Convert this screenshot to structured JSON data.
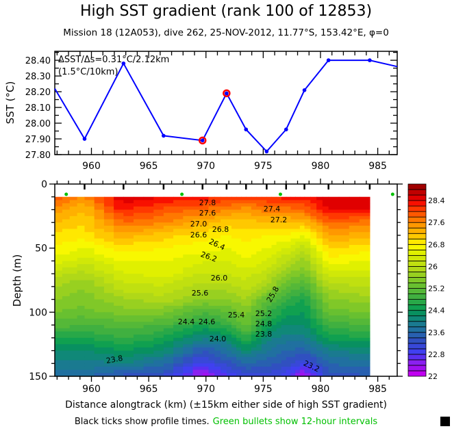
{
  "title": "High SST gradient (rank 100 of 12853)",
  "subtitle": "Mission 18 (12A053),  dive 262,  25-NOV-2012,  11.77°S, 153.42°E,  φ=0",
  "footnote": {
    "black_part": "Black ticks show profile times.",
    "green_part": "Green bullets show 12-hour intervals",
    "green_color": "#00c000"
  },
  "chart_data": [
    {
      "type": "line",
      "ylabel": "SST (°C)",
      "annotation_line1": "ΔSST/Δs=0.31°C/2.12km",
      "annotation_line2": "(1.5°C/10km)",
      "xlim": [
        956.8,
        986.7
      ],
      "ylim": [
        27.8,
        28.457
      ],
      "x_ticks": [
        960,
        965,
        970,
        975,
        980,
        985
      ],
      "y_ticks": [
        "27.80",
        "27.90",
        "28.00",
        "28.10",
        "28.20",
        "28.30",
        "28.40"
      ],
      "line_color": "#0000ff",
      "highlight_color": "#ff0000",
      "x": [
        956.8,
        959.4,
        962.8,
        966.3,
        969.7,
        971.8,
        973.5,
        975.3,
        977.0,
        978.6,
        980.7,
        984.3,
        986.7
      ],
      "y": [
        28.22,
        27.9,
        28.38,
        27.92,
        27.89,
        28.19,
        27.96,
        27.82,
        27.96,
        28.21,
        28.4,
        28.4,
        28.36
      ],
      "highlighted_x": [
        969.7,
        971.8
      ]
    },
    {
      "type": "heatmap",
      "ylabel": "Depth (m)",
      "xlabel": "Distance alongtrack (km) (±15km either side of high SST gradient)",
      "xlim": [
        956.8,
        986.7
      ],
      "ylim": [
        150,
        0
      ],
      "x_ticks": [
        960,
        965,
        970,
        975,
        980,
        985
      ],
      "y_ticks": [
        0,
        50,
        100,
        150
      ],
      "profile_x": [
        956.8,
        959.4,
        962.8,
        966.3,
        969.7,
        971.8,
        973.5,
        975.3,
        977.0,
        978.6,
        980.7,
        984.3
      ],
      "depths": [
        10,
        20,
        30,
        40,
        50,
        60,
        70,
        80,
        90,
        100,
        110,
        120,
        130,
        140,
        150
      ],
      "temperature": [
        [
          27.9,
          27.5,
          27.2,
          26.9,
          26.8,
          26.5,
          26.1,
          25.8,
          25.6,
          25.4,
          25.1,
          24.6,
          24.2,
          23.9,
          23.7
        ],
        [
          27.6,
          27.2,
          27.0,
          26.9,
          26.6,
          26.3,
          25.9,
          25.6,
          25.5,
          25.3,
          25.0,
          24.6,
          24.2,
          23.9,
          23.7
        ],
        [
          28.6,
          28.3,
          27.8,
          27.3,
          26.9,
          26.6,
          26.4,
          26.1,
          25.8,
          25.5,
          25.1,
          24.8,
          24.4,
          24.0,
          23.3
        ],
        [
          28.4,
          27.9,
          27.6,
          27.1,
          26.8,
          26.6,
          26.5,
          26.2,
          25.9,
          25.5,
          25.0,
          24.6,
          24.2,
          23.7,
          23.2
        ],
        [
          28.3,
          27.8,
          27.3,
          26.9,
          26.7,
          26.4,
          26.2,
          25.9,
          25.6,
          25.0,
          24.6,
          24.0,
          23.4,
          22.9,
          22.2
        ],
        [
          28.2,
          27.6,
          27.1,
          26.8,
          26.6,
          26.4,
          26.2,
          25.9,
          25.6,
          25.2,
          24.8,
          24.2,
          23.7,
          23.3,
          22.8
        ],
        [
          28.1,
          27.5,
          27.1,
          26.9,
          26.7,
          26.6,
          26.3,
          26.1,
          25.8,
          25.5,
          25.3,
          24.8,
          24.2,
          23.6,
          23.1
        ],
        [
          28.2,
          27.7,
          27.2,
          26.8,
          26.6,
          26.4,
          26.1,
          25.8,
          25.2,
          24.9,
          24.5,
          24.1,
          23.8,
          23.5,
          23.1
        ],
        [
          28.3,
          27.7,
          27.2,
          26.8,
          26.4,
          26.0,
          25.6,
          25.2,
          24.8,
          24.5,
          24.2,
          23.9,
          23.6,
          23.3,
          22.9
        ],
        [
          28.3,
          27.8,
          27.2,
          26.6,
          26.1,
          25.7,
          25.4,
          25.0,
          24.6,
          24.4,
          24.2,
          23.9,
          23.5,
          23.0,
          22.2
        ],
        [
          28.6,
          28.4,
          27.8,
          27.4,
          27.0,
          26.7,
          26.3,
          25.9,
          25.6,
          25.3,
          24.9,
          24.5,
          24.0,
          23.6,
          23.3
        ],
        [
          28.6,
          28.4,
          27.7,
          27.3,
          26.9,
          26.6,
          26.3,
          26.0,
          25.7,
          25.4,
          25.0,
          24.6,
          24.1,
          23.7,
          23.4
        ]
      ],
      "green_bullets_x": [
        957.8,
        967.9,
        976.5,
        986.3
      ],
      "contour_labels": [
        "27.8",
        "27.6",
        "27.0",
        "26.8",
        "26.6",
        "26.4",
        "26.2",
        "26.0",
        "25.6",
        "24.4",
        "24.6",
        "24.0",
        "23.8",
        "27.4",
        "27.2",
        "25.8",
        "25.4",
        "25.2",
        "24.8",
        "23.8",
        "23.2"
      ],
      "colorbar": {
        "min": 22.0,
        "step": 0.2,
        "tick_labels": [
          "22",
          "22.8",
          "23.6",
          "24.4",
          "25.2",
          "26",
          "26.8",
          "27.6",
          "28.4"
        ],
        "colors": [
          "#c000f0",
          "#a010f0",
          "#8a20f0",
          "#5a30f0",
          "#4040f0",
          "#3848d8",
          "#3050c0",
          "#2860b0",
          "#2070a0",
          "#1a7a90",
          "#108878",
          "#089060",
          "#10a050",
          "#28a848",
          "#40b040",
          "#55b838",
          "#68c030",
          "#80c828",
          "#98d020",
          "#b0d818",
          "#c0e010",
          "#d0e808",
          "#e0f000",
          "#f8f800",
          "#ffe800",
          "#ffc800",
          "#ffb000",
          "#ff9800",
          "#ff7800",
          "#ff5800",
          "#ff3800",
          "#f81000",
          "#e00000",
          "#c00000",
          "#a00000"
        ]
      }
    }
  ]
}
